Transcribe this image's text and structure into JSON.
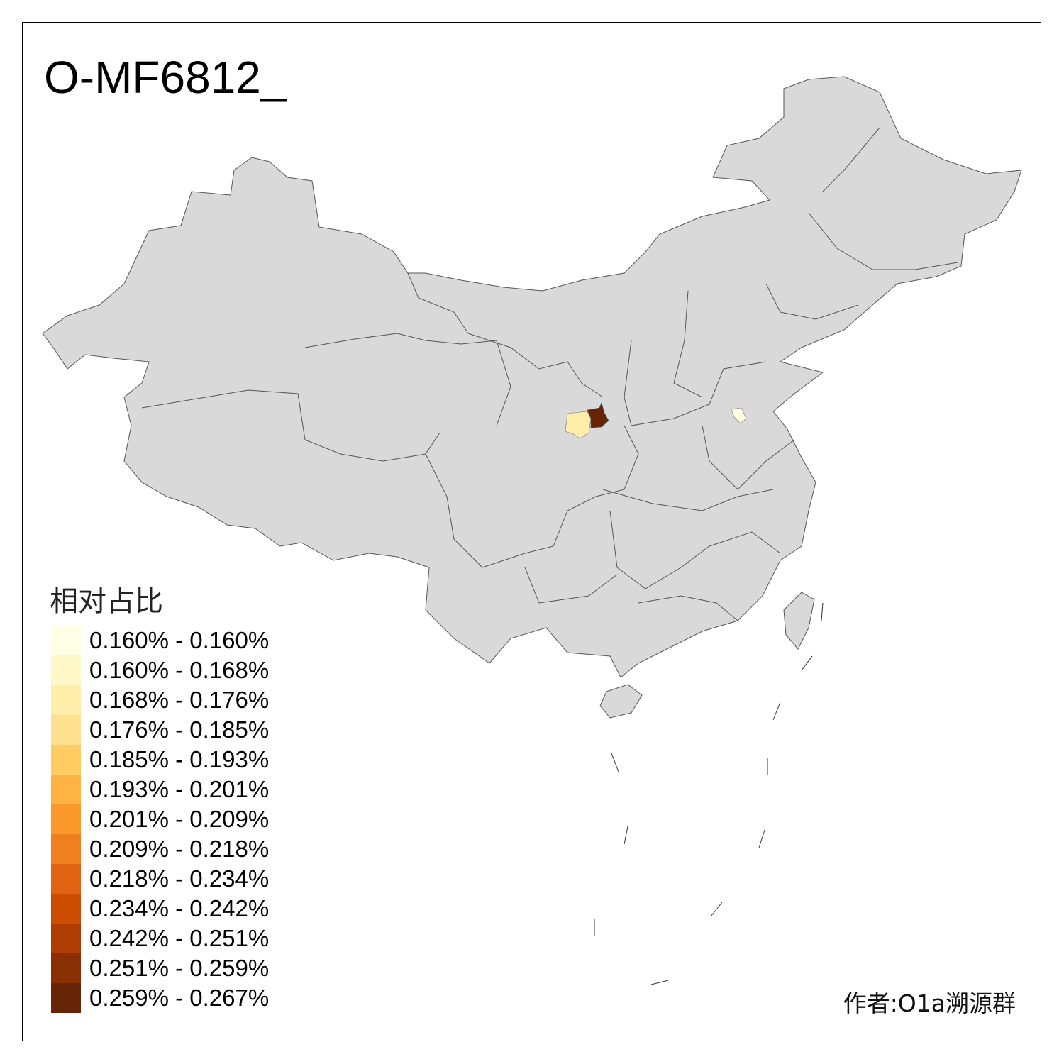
{
  "title": "O-MF6812_",
  "legend": {
    "title": "相对占比",
    "items": [
      {
        "label": "0.160% - 0.160%",
        "color": "#FFFFE5"
      },
      {
        "label": "0.160% - 0.168%",
        "color": "#FFF8C9"
      },
      {
        "label": "0.168% - 0.176%",
        "color": "#FFEDAA"
      },
      {
        "label": "0.176% - 0.185%",
        "color": "#FEE08E"
      },
      {
        "label": "0.185% - 0.193%",
        "color": "#FECC63"
      },
      {
        "label": "0.193% - 0.201%",
        "color": "#FEB342"
      },
      {
        "label": "0.201% - 0.209%",
        "color": "#FB9A2A"
      },
      {
        "label": "0.209% - 0.218%",
        "color": "#F0801E"
      },
      {
        "label": "0.218% - 0.234%",
        "color": "#E06411"
      },
      {
        "label": "0.234% - 0.242%",
        "color": "#CC4C02"
      },
      {
        "label": "0.242% - 0.251%",
        "color": "#AD3D03"
      },
      {
        "label": "0.251% - 0.259%",
        "color": "#8A2F04"
      },
      {
        "label": "0.259% - 0.267%",
        "color": "#662506"
      }
    ]
  },
  "map": {
    "default_fill": "#D9D9D9",
    "border_color": "#555555",
    "highlighted_regions": [
      {
        "bin": "0.168% - 0.176%",
        "color": "#FFEDAA"
      },
      {
        "bin": "0.259% - 0.267%",
        "color": "#662506"
      },
      {
        "bin": "0.160% - 0.160%",
        "color": "#FFFFE5"
      }
    ]
  },
  "author": "作者:O1a溯源群"
}
